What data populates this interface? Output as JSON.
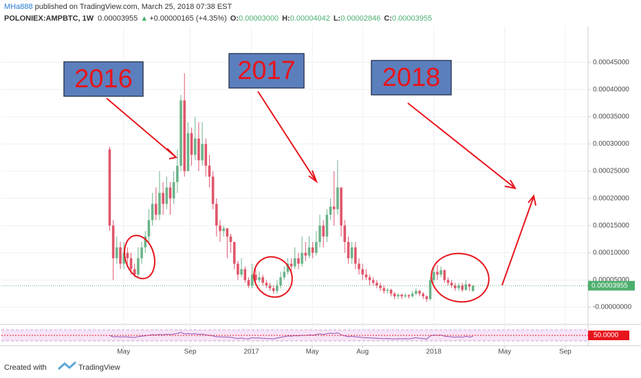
{
  "header": {
    "author": "MHa888",
    "published": " published on TradingView.com, March 25, 2018 07:38 EST",
    "symbol": "POLONIEX:AMPBTC, 1W",
    "price": "0.00003955",
    "change_arrow": "▲",
    "change": "+0.00000165 (+4.35%)",
    "ohlc": [
      {
        "label": "O:",
        "value": "0.00003000"
      },
      {
        "label": "H:",
        "value": "0.00004042"
      },
      {
        "label": "L:",
        "value": "0.00002846"
      },
      {
        "label": "C:",
        "value": "0.00003955"
      }
    ]
  },
  "footer": {
    "created": "Created with",
    "brand": "TradingView"
  },
  "chart_data": {
    "type": "candlestick",
    "up_color": "#6cb38a",
    "down_color": "#e0566b",
    "open": [
      0.00029,
      0.00015,
      9e-05,
      0.00011,
      8e-05,
      0.0001,
      9e-05,
      7e-05,
      6e-05,
      9e-05,
      0.00011,
      0.00013,
      0.00016,
      0.00019,
      0.00017,
      0.00021,
      0.00019,
      0.00022,
      0.0002,
      0.00023,
      0.00026,
      0.00038,
      0.00025,
      0.00032,
      0.00028,
      0.00031,
      0.00027,
      0.0003,
      0.00026,
      0.00024,
      0.00019,
      0.00015,
      0.00014,
      0.000145,
      0.00013,
      0.00012,
      8e-05,
      6e-05,
      7e-05,
      5e-05,
      4e-05,
      6e-05,
      5e-05,
      5.5e-05,
      4.5e-05,
      4e-05,
      3.5e-05,
      3e-05,
      4e-05,
      5.5e-05,
      6.5e-05,
      8e-05,
      7.5e-05,
      9e-05,
      8e-05,
      0.0001,
      9.5e-05,
      0.00011,
      0.0001,
      0.00012,
      0.00015,
      0.00013,
      0.00017,
      0.000185,
      0.00018,
      0.00022,
      0.00015,
      0.00012,
      9e-05,
      0.00011,
      8e-05,
      7e-05,
      6e-05,
      5.5e-05,
      5e-05,
      4.5e-05,
      4e-05,
      3.5e-05,
      3e-05,
      3.2e-05,
      2.5e-05,
      2e-05,
      2.3e-05,
      2e-05,
      2.2e-05,
      2e-05,
      2.5e-05,
      3e-05,
      2.5e-05,
      2e-05,
      1.5e-05,
      5e-05,
      6.5e-05,
      6e-05,
      6.8e-05,
      5e-05,
      4.5e-05,
      4e-05,
      3.5e-05,
      4e-05,
      3.2e-05,
      4.2e-05,
      3e-05
    ],
    "high": [
      0.000295,
      0.00016,
      0.00013,
      0.00012,
      0.00012,
      0.00011,
      0.0001,
      8e-05,
      0.00011,
      0.00012,
      0.00014,
      0.00018,
      0.00021,
      0.00022,
      0.00025,
      0.00023,
      0.00024,
      0.00023,
      0.00025,
      0.00029,
      0.00039,
      0.00043,
      0.00034,
      0.00033,
      0.00035,
      0.00034,
      0.00034,
      0.00031,
      0.00028,
      0.00025,
      0.0002,
      0.00016,
      0.00015,
      0.000145,
      0.000135,
      0.00012,
      8.5e-05,
      9e-05,
      7.5e-05,
      5.5e-05,
      8e-05,
      7e-05,
      6.5e-05,
      6e-05,
      5e-05,
      4.5e-05,
      4e-05,
      5e-05,
      6.5e-05,
      7.5e-05,
      9e-05,
      9e-05,
      0.00011,
      0.0001,
      0.00013,
      0.00012,
      0.00013,
      0.00012,
      0.00014,
      0.00017,
      0.00016,
      0.00018,
      0.0002,
      0.00025,
      0.00027,
      0.00022,
      0.00016,
      0.00013,
      0.00012,
      0.00012,
      9e-05,
      8e-05,
      7e-05,
      6e-05,
      5.5e-05,
      5e-05,
      4.5e-05,
      4e-05,
      3.5e-05,
      3.4e-05,
      2.8e-05,
      2.6e-05,
      2.5e-05,
      2.6e-05,
      2.4e-05,
      3e-05,
      3.5e-05,
      3.2e-05,
      2.8e-05,
      2.2e-05,
      5.5e-05,
      7.5e-05,
      7.8e-05,
      7.5e-05,
      7e-05,
      5.5e-05,
      5e-05,
      4.5e-05,
      4.5e-05,
      4.5e-05,
      5e-05,
      4.4e-05,
      4.042e-05
    ],
    "low": [
      0.00014,
      5e-05,
      8e-05,
      7e-05,
      7e-05,
      8e-05,
      6e-05,
      5.5e-05,
      5.5e-05,
      8e-05,
      0.0001,
      0.00012,
      0.00015,
      0.00016,
      0.00016,
      0.00017,
      0.00018,
      0.00017,
      0.00019,
      0.00021,
      0.00025,
      0.00024,
      0.00025,
      0.00026,
      0.00027,
      0.00025,
      0.00026,
      0.00024,
      0.00022,
      0.00018,
      0.00013,
      0.00012,
      0.00013,
      9e-05,
      0.0001,
      7e-05,
      5e-05,
      5.5e-05,
      4.5e-05,
      3.5e-05,
      3.5e-05,
      4.5e-05,
      4.5e-05,
      4e-05,
      3.5e-05,
      3e-05,
      2.5e-05,
      2.5e-05,
      3.5e-05,
      5e-05,
      6e-05,
      6.5e-05,
      7e-05,
      7e-05,
      7.5e-05,
      8.5e-05,
      9e-05,
      9e-05,
      9.5e-05,
      0.00011,
      0.00011,
      0.00012,
      0.00016,
      0.00015,
      0.00017,
      0.00013,
      0.0001,
      8e-05,
      8e-05,
      7e-05,
      6e-05,
      5e-05,
      5e-05,
      4e-05,
      4e-05,
      3.5e-05,
      3e-05,
      2.5e-05,
      2.5e-05,
      2e-05,
      1.5e-05,
      1.5e-05,
      1.5e-05,
      1.7e-05,
      1.6e-05,
      1.8e-05,
      2.2e-05,
      2e-05,
      1.5e-05,
      1e-05,
      1.2e-05,
      4.5e-05,
      5e-05,
      5.5e-05,
      4.5e-05,
      4e-05,
      3.5e-05,
      3e-05,
      3e-05,
      2.8e-05,
      3e-05,
      3e-05,
      2.846e-05
    ],
    "close": [
      0.00015,
      9e-05,
      0.00011,
      8e-05,
      0.0001,
      9e-05,
      7e-05,
      6e-05,
      9e-05,
      0.00011,
      0.00013,
      0.00016,
      0.00019,
      0.00017,
      0.00021,
      0.00019,
      0.00022,
      0.0002,
      0.00023,
      0.00026,
      0.00038,
      0.00025,
      0.00032,
      0.00028,
      0.00031,
      0.00027,
      0.0003,
      0.00026,
      0.00024,
      0.00019,
      0.00015,
      0.00014,
      0.000145,
      0.00013,
      0.00012,
      8e-05,
      6e-05,
      7e-05,
      5e-05,
      4e-05,
      6e-05,
      5e-05,
      5.5e-05,
      4.5e-05,
      4e-05,
      3.5e-05,
      3e-05,
      4e-05,
      5.5e-05,
      6.5e-05,
      8e-05,
      7.5e-05,
      9e-05,
      8e-05,
      0.0001,
      9.5e-05,
      0.00011,
      0.0001,
      0.00012,
      0.00015,
      0.00013,
      0.00017,
      0.000185,
      0.00018,
      0.00022,
      0.00015,
      0.00012,
      9e-05,
      0.00011,
      8e-05,
      7e-05,
      6e-05,
      5.5e-05,
      5e-05,
      4.5e-05,
      4e-05,
      3.5e-05,
      3e-05,
      3.2e-05,
      2.5e-05,
      2e-05,
      2.3e-05,
      2e-05,
      2.2e-05,
      2e-05,
      2.5e-05,
      3e-05,
      2.5e-05,
      2e-05,
      1.5e-05,
      5e-05,
      6.5e-05,
      6e-05,
      6.8e-05,
      5e-05,
      4.5e-05,
      4e-05,
      3.5e-05,
      4e-05,
      3.2e-05,
      4.2e-05,
      3.79e-05,
      3.955e-05
    ],
    "xlim": [
      -30.4,
      134.3
    ],
    "xticks": [
      {
        "value": 3.9,
        "label": "May"
      },
      {
        "value": 22.6,
        "label": "Sep"
      },
      {
        "value": 39.8,
        "label": "2017"
      },
      {
        "value": 56.9,
        "label": "May"
      },
      {
        "value": 71.0,
        "label": "Aug"
      },
      {
        "value": 91.0,
        "label": "2018"
      },
      {
        "value": 110.9,
        "label": "May"
      },
      {
        "value": 127.9,
        "label": "Sep"
      }
    ],
    "ylim": [
      -2.9e-05,
      0.000514
    ],
    "yticks": [
      {
        "value": 0,
        "label": "-0.00000000"
      },
      {
        "value": 5e-05,
        "label": "0.00005000"
      },
      {
        "value": 0.0001,
        "label": "0.00010000"
      },
      {
        "value": 0.00015,
        "label": "0.00015000"
      },
      {
        "value": 0.0002,
        "label": "0.00020000"
      },
      {
        "value": 0.00025,
        "label": "0.00025000"
      },
      {
        "value": 0.0003,
        "label": "0.00030000"
      },
      {
        "value": 0.00035,
        "label": "0.00035000"
      },
      {
        "value": 0.0004,
        "label": "0.00040000"
      },
      {
        "value": 0.00045,
        "label": "0.00045000"
      }
    ],
    "grid": true,
    "price_label": {
      "value": 3.955e-05,
      "label": "0.00003955",
      "color": "#4caf6e"
    },
    "annotations": [
      "2016",
      "2017",
      "2018"
    ],
    "rsi": {
      "color": "#9b4fb0",
      "ylim": [
        0,
        100
      ],
      "level": {
        "value": 50,
        "label": "50.0000",
        "color": "#e8141c"
      },
      "values": [
        50,
        42,
        44,
        41,
        43,
        42,
        40,
        39,
        44,
        46,
        48,
        51,
        54,
        52,
        55,
        53,
        56,
        54,
        57,
        60,
        66,
        57,
        60,
        57,
        59,
        55,
        57,
        53,
        51,
        47,
        43,
        42,
        42,
        41,
        40,
        36,
        34,
        36,
        33,
        32,
        38,
        36,
        37,
        35,
        34,
        33,
        32,
        36,
        40,
        43,
        47,
        46,
        49,
        47,
        51,
        50,
        53,
        51,
        54,
        58,
        54,
        59,
        61,
        60,
        64,
        53,
        48,
        43,
        46,
        42,
        41,
        39,
        38,
        37,
        36,
        35,
        34,
        33,
        34,
        32,
        31,
        33,
        32,
        33,
        32,
        35,
        38,
        35,
        33,
        31,
        47,
        52,
        50,
        52,
        46,
        44,
        42,
        40,
        43,
        40,
        45,
        41,
        45
      ]
    }
  }
}
